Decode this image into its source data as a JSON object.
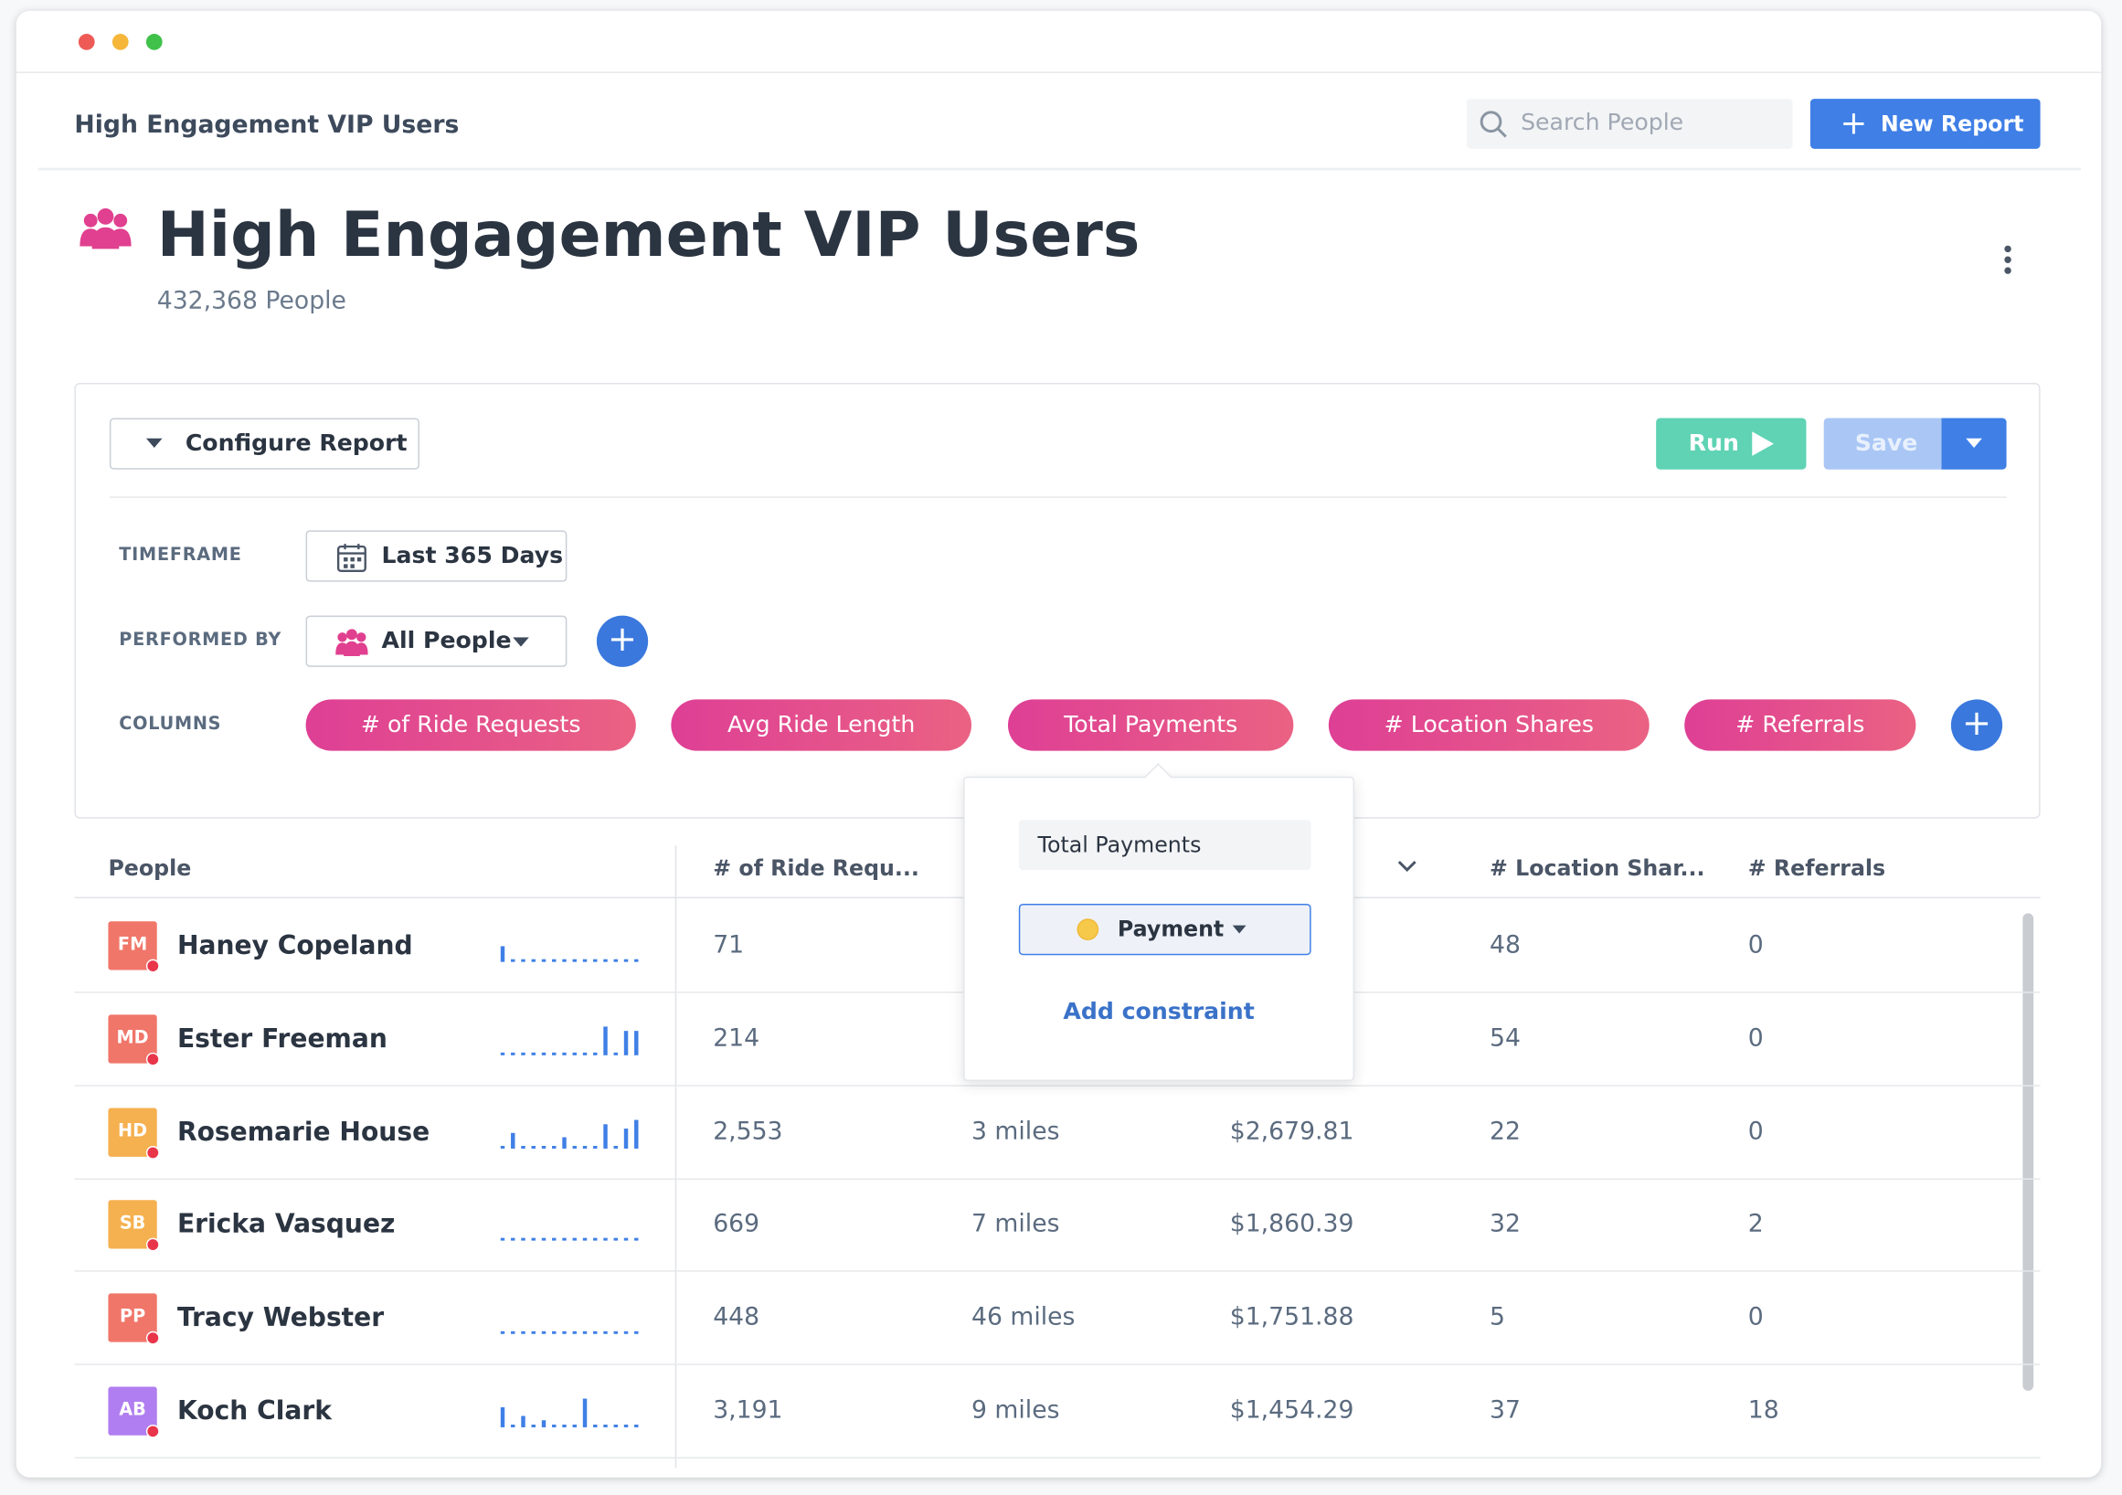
{
  "window_title": "High Engagement VIP Users",
  "search_placeholder": "Search People",
  "new_report_button": "New Report",
  "report": {
    "title": "High Engagement VIP Users",
    "subtitle": "432,368 People"
  },
  "config": {
    "configure_button": "Configure Report",
    "run_button": "Run",
    "save_button": "Save",
    "filters": [
      {
        "label": "TIMEFRAME",
        "value": "Last 365 Days"
      },
      {
        "label": "PERFORMED BY",
        "value": "All People"
      }
    ],
    "columns_label": "COLUMNS",
    "columns": [
      "# of Ride Requests",
      "Avg Ride Length",
      "Total Payments",
      "# Location Shares",
      "# Referrals"
    ]
  },
  "popup": {
    "column_name": "Total Payments",
    "event": "Payment",
    "add_constraint": "Add constraint"
  },
  "table": {
    "headers": [
      "People",
      "# of Ride Requ...",
      "# Location Shar...",
      "# Referrals"
    ],
    "rows": [
      {
        "initials": "FM",
        "avatar_color": "#f0766a",
        "name": "Haney Copeland",
        "activity": [
          3,
          0,
          0,
          0,
          0,
          0,
          0,
          0,
          0,
          0,
          0,
          0,
          0,
          0
        ],
        "ride_requests": "71",
        "location_shares": "48",
        "referrals": "0"
      },
      {
        "initials": "MD",
        "avatar_color": "#f0766a",
        "name": "Ester Freeman",
        "activity": [
          0,
          0,
          0,
          0,
          0,
          0,
          0,
          0,
          0,
          0,
          6,
          0,
          5,
          5
        ],
        "ride_requests": "214",
        "location_shares": "54",
        "referrals": "0"
      },
      {
        "initials": "HD",
        "avatar_color": "#f5b04f",
        "name": "Rosemarie House",
        "activity": [
          0,
          3,
          0,
          0,
          0,
          0,
          2,
          0,
          0,
          0,
          5,
          0,
          4,
          6
        ],
        "ride_requests": "2,553",
        "avg_ride_length": "3 miles",
        "total_payments": "$2,679.81",
        "location_shares": "22",
        "referrals": "0"
      },
      {
        "initials": "SB",
        "avatar_color": "#f5b04f",
        "name": "Ericka Vasquez",
        "activity": [
          0,
          0,
          0,
          0,
          0,
          0,
          0,
          0,
          0,
          0,
          0,
          0,
          0,
          0
        ],
        "ride_requests": "669",
        "avg_ride_length": "7 miles",
        "total_payments": "$1,860.39",
        "location_shares": "32",
        "referrals": "2"
      },
      {
        "initials": "PP",
        "avatar_color": "#f0766a",
        "name": "Tracy Webster",
        "activity": [
          0,
          0,
          0,
          0,
          0,
          0,
          0,
          0,
          0,
          0,
          0,
          0,
          0,
          0
        ],
        "ride_requests": "448",
        "avg_ride_length": "46 miles",
        "total_payments": "$1,751.88",
        "location_shares": "5",
        "referrals": "0"
      },
      {
        "initials": "AB",
        "avatar_color": "#b07ef0",
        "name": "Koch Clark",
        "activity": [
          4,
          0,
          2,
          0,
          1,
          0,
          0,
          0,
          6,
          0,
          0,
          0,
          0,
          0
        ],
        "ride_requests": "3,191",
        "avg_ride_length": "9 miles",
        "total_payments": "$1,454.29",
        "location_shares": "37",
        "referrals": "18"
      }
    ]
  }
}
